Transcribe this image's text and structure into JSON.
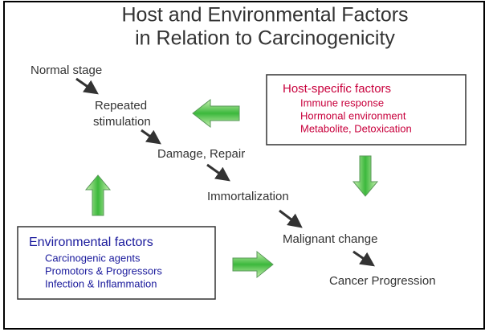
{
  "title": [
    "Host and Environmental Factors",
    "in Relation to Carcinogenicity"
  ],
  "stages": [
    "Normal stage",
    "Repeated",
    "stimulation",
    "Damage, Repair",
    "Immortalization",
    "Malignant change",
    "Cancer Progression"
  ],
  "host_factors": {
    "title": "Host-specific factors",
    "items": [
      "Immune response",
      "Hormonal environment",
      "Metabolite, Detoxication"
    ]
  },
  "environmental_factors": {
    "title": "Environmental factors",
    "items": [
      "Carcinogenic agents",
      "Promotors & Progressors",
      "Infection & Inflammation"
    ]
  }
}
